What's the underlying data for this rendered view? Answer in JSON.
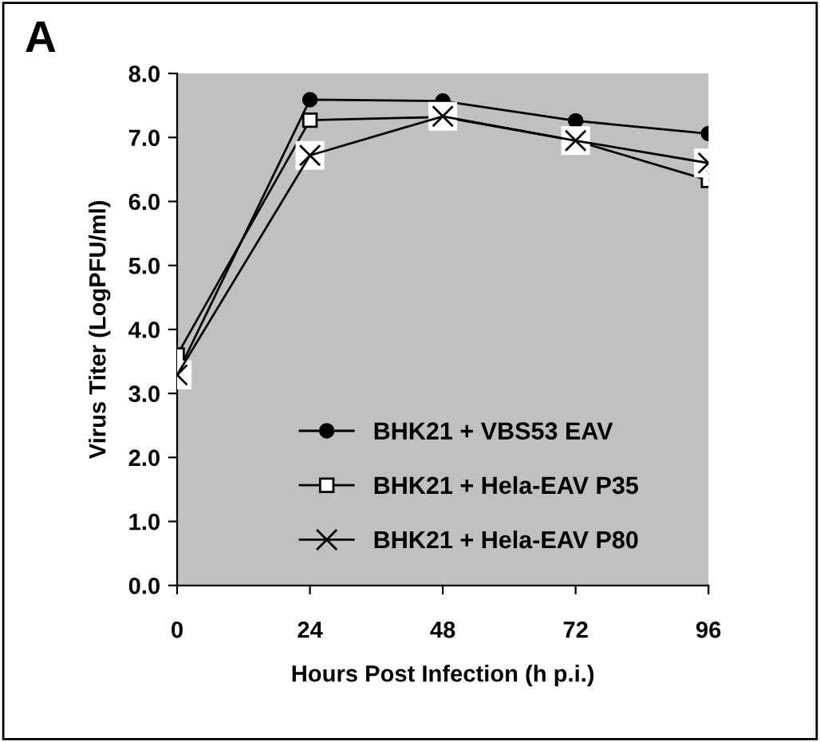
{
  "chart_data": {
    "type": "line",
    "title": "A",
    "xlabel": "Hours Post Infection (h p.i.)",
    "ylabel": "Virus Titer (LogPFU/ml)",
    "x": [
      0,
      24,
      48,
      72,
      96
    ],
    "series": [
      {
        "name": "BHK21 + VBS53 EAV",
        "color": "#000000",
        "marker": "circle",
        "values": [
          3.3,
          7.59,
          7.57,
          7.26,
          7.06
        ]
      },
      {
        "name": "BHK21 + Hela-EAV P35",
        "color": "#000000",
        "marker": "square",
        "values": [
          3.6,
          7.27,
          7.32,
          6.95,
          6.33
        ]
      },
      {
        "name": "BHK21 + Hela-EAV P80",
        "color": "#000000",
        "marker": "cross",
        "values": [
          3.29,
          6.72,
          7.33,
          6.95,
          6.6
        ]
      }
    ],
    "xlim": [
      0,
      96
    ],
    "xticks": [
      0,
      24,
      48,
      72,
      96
    ],
    "ylim": [
      0,
      8
    ],
    "yticks": [
      {
        "value": 0,
        "label": "0.0"
      },
      {
        "value": 1,
        "label": "1.0"
      },
      {
        "value": 2,
        "label": "2.0"
      },
      {
        "value": 3,
        "label": "3.0"
      },
      {
        "value": 4,
        "label": "4.0"
      },
      {
        "value": 5,
        "label": "5.0"
      },
      {
        "value": 6,
        "label": "6.0"
      },
      {
        "value": 7,
        "label": "7.0"
      },
      {
        "value": 8,
        "label": "8.0"
      }
    ],
    "grid": false,
    "legend": "bottom"
  }
}
